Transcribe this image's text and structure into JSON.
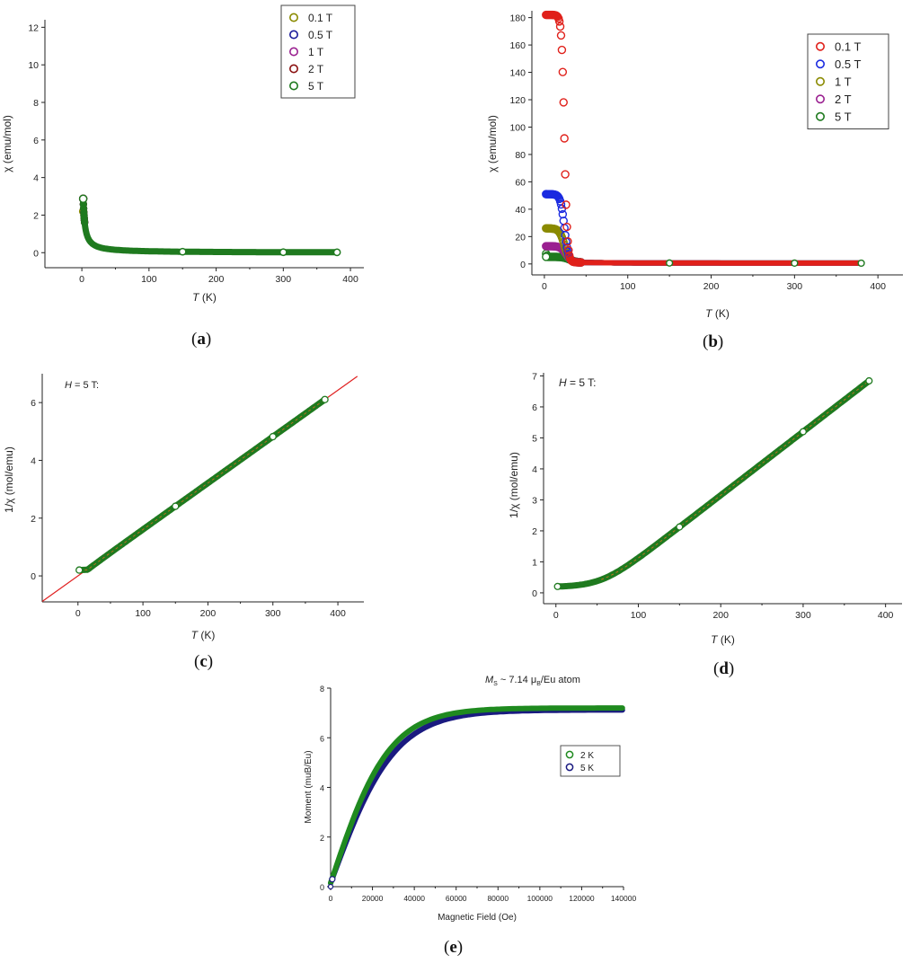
{
  "chart_data": [
    {
      "id": "a",
      "type": "scatter",
      "caption": "a",
      "xlabel_italic": "T",
      "xlabel_rest": " (K)",
      "ylabel": "χ (emu/mol)",
      "xlim": [
        -55,
        420
      ],
      "ylim": [
        -0.8,
        12.4
      ],
      "xticks": [
        0,
        100,
        200,
        300,
        400
      ],
      "yticks": [
        0,
        2,
        4,
        6,
        8,
        10,
        12
      ],
      "legend_position": "top-right",
      "series": [
        {
          "name": "0.1 T",
          "color": "#8a8a00",
          "C": 7.75,
          "theta": -0.7,
          "chi0": 0.0,
          "tmin": 2,
          "tsat": 2.2
        },
        {
          "name": "0.5 T",
          "color": "#1a1a9a",
          "C": 7.75,
          "theta": -0.7,
          "chi0": 0.0,
          "tmin": 2,
          "tsat": 4.0
        },
        {
          "name": "1 T",
          "color": "#9a2090",
          "C": 7.75,
          "theta": -0.7,
          "chi0": 0.0,
          "tmin": 2,
          "tsat": 5.5
        },
        {
          "name": "2 T",
          "color": "#8a1010",
          "C": 7.75,
          "theta": -0.7,
          "chi0": 0.0,
          "tmin": 2,
          "tsat": 8.0
        },
        {
          "name": "5 T",
          "color": "#1f7a1f",
          "C": 7.75,
          "theta": -0.7,
          "chi0": 0.0,
          "tmin": 2,
          "tsat": 11.0
        }
      ]
    },
    {
      "id": "b",
      "type": "scatter",
      "caption": "b",
      "xlabel_italic": "T",
      "xlabel_rest": " (K)",
      "ylabel": "χ (emu/mol)",
      "xlim": [
        -15,
        430
      ],
      "ylim": [
        -8,
        185
      ],
      "xticks": [
        0,
        100,
        200,
        300,
        400
      ],
      "yticks": [
        0,
        20,
        40,
        60,
        80,
        100,
        120,
        140,
        160,
        180
      ],
      "legend_position": "top-right",
      "series": [
        {
          "name": "0.1 T",
          "color": "#e0201a",
          "low": 182,
          "tc": 24,
          "width": 5
        },
        {
          "name": "0.5 T",
          "color": "#1a2ae0",
          "low": 51,
          "tc": 24,
          "width": 7
        },
        {
          "name": "1 T",
          "color": "#8a8a00",
          "low": 26,
          "tc": 24,
          "width": 9
        },
        {
          "name": "2 T",
          "color": "#9a2090",
          "low": 13,
          "tc": 26,
          "width": 10
        },
        {
          "name": "5 T",
          "color": "#1f7a1f",
          "low": 5.2,
          "tc": 30,
          "width": 12
        }
      ]
    },
    {
      "id": "c",
      "type": "line",
      "caption": "c",
      "annotation_italic": "H",
      "annotation_rest": " = 5 T:",
      "xlabel_italic": "T",
      "xlabel_rest": " (K)",
      "ylabel": "1/χ (mol/emu)",
      "xlim": [
        -55,
        440
      ],
      "ylim": [
        -0.9,
        7.0
      ],
      "xticks": [
        0,
        100,
        200,
        300,
        400
      ],
      "yticks": [
        0,
        2,
        4,
        6
      ],
      "fit_line": {
        "slope": 0.01607,
        "intercept": 0.0,
        "color": "#e02020"
      },
      "data_range": [
        2,
        380
      ],
      "data_color": "#1f7a1f"
    },
    {
      "id": "d",
      "type": "line",
      "caption": "d",
      "annotation_italic": "H",
      "annotation_rest": " = 5 T:",
      "xlabel_italic": "T",
      "xlabel_rest": " (K)",
      "ylabel": "1/χ (mol/emu)",
      "xlim": [
        -15,
        420
      ],
      "ylim": [
        -0.35,
        7.1
      ],
      "xticks": [
        0,
        100,
        200,
        300,
        400
      ],
      "yticks": [
        0,
        1,
        2,
        3,
        4,
        5,
        6,
        7
      ],
      "slope": 0.0205,
      "intercept": -0.95,
      "low_value": 0.19,
      "data_range": [
        2,
        380
      ],
      "data_color": "#1f7a1f",
      "fit_color": "#c87820"
    },
    {
      "id": "e",
      "type": "line",
      "caption": "e",
      "annotation_prefix": "M",
      "annotation_sub": "S",
      "annotation_mid": " ~ 7.14 μ",
      "annotation_sub2": "B",
      "annotation_suffix": "/Eu atom",
      "xlabel": "Magnetic Field (Oe)",
      "ylabel": "Moment (muB/Eu)",
      "xlim": [
        0,
        140000
      ],
      "ylim": [
        0,
        8
      ],
      "xticks": [
        0,
        20000,
        40000,
        60000,
        80000,
        100000,
        120000,
        140000
      ],
      "yticks": [
        0,
        2,
        4,
        6,
        8
      ],
      "legend_position": "right",
      "series": [
        {
          "name": "2 K",
          "color": "#1f8a1f",
          "ms": 7.2,
          "h0": 27000
        },
        {
          "name": "5 K",
          "color": "#1a1a80",
          "ms": 7.12,
          "h0": 29500
        }
      ]
    }
  ]
}
